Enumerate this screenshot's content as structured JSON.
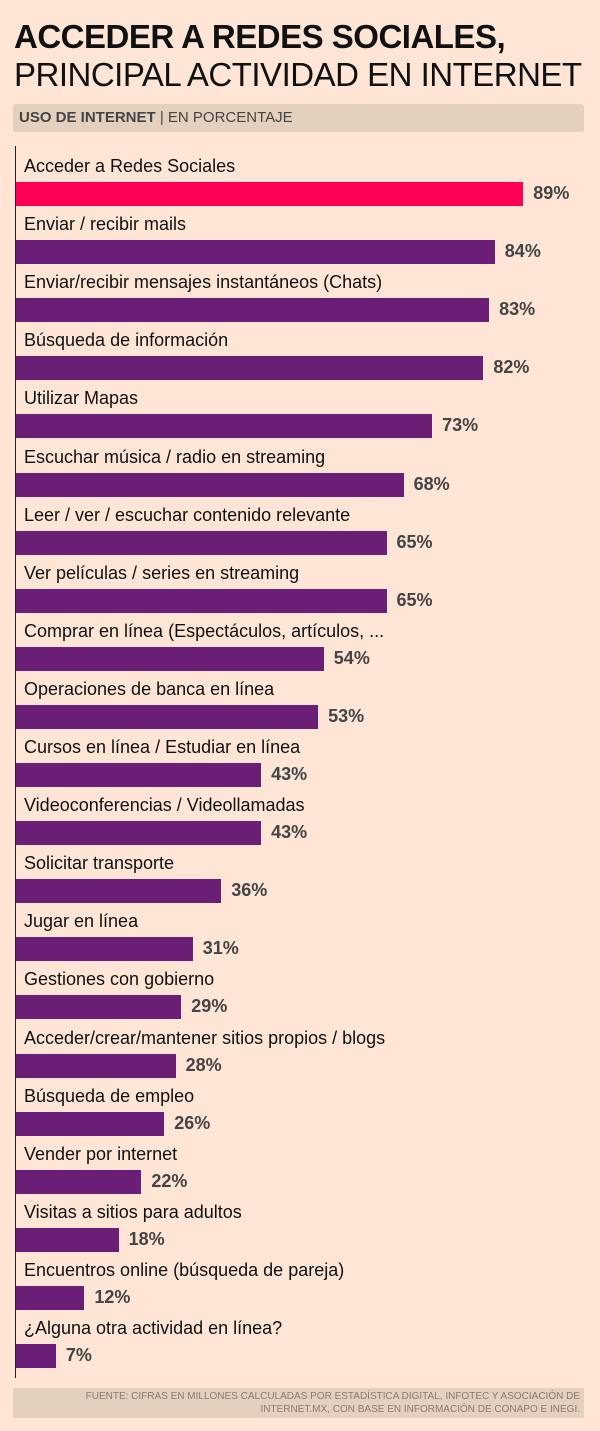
{
  "title_bold": "ACCEDER A REDES SOCIALES,",
  "title_light": "PRINCIPAL ACTIVIDAD EN INTERNET",
  "subtitle_bold": "USO DE INTERNET",
  "subtitle_rest": "| EN PORCENTAJE",
  "source_line1": "FUENTE: CIFRAS EN MILLONES CALCULADAS POR ESTADÍSTICA DIGITAL, INFOTEC Y ASOCIACIÓN DE",
  "source_line2": "INTERNET.MX, CON BASE EN INFORMACIÓN DE CONAPO E INEGI.",
  "colors": {
    "highlight": "#ff0055",
    "bar": "#6b1e76",
    "background": "#fee5d6"
  },
  "chart_data": {
    "type": "bar",
    "orientation": "horizontal",
    "unit": "%",
    "xlim": [
      0,
      100
    ],
    "grid": false,
    "categories": [
      "Acceder a Redes Sociales",
      "Enviar / recibir mails",
      "Enviar/recibir mensajes instantáneos (Chats)",
      "Búsqueda de información",
      "Utilizar Mapas",
      "Escuchar música / radio en streaming",
      "Leer / ver / escuchar contenido relevante",
      "Ver películas / series en streaming",
      "Comprar en línea (Espectáculos, artículos, ...",
      "Operaciones de banca en línea",
      "Cursos en línea / Estudiar en línea",
      "Videoconferencias / Videollamadas",
      "Solicitar transporte",
      "Jugar en línea",
      "Gestiones con gobierno",
      "Acceder/crear/mantener sitios propios / blogs",
      "Búsqueda de empleo",
      "Vender por internet",
      "Visitas a sitios para adultos",
      "Encuentros online (búsqueda de pareja)",
      "¿Alguna otra actividad en línea?"
    ],
    "values": [
      89,
      84,
      83,
      82,
      73,
      68,
      65,
      65,
      54,
      53,
      43,
      43,
      36,
      31,
      29,
      28,
      26,
      22,
      18,
      12,
      7
    ],
    "value_labels": [
      "89%",
      "84%",
      "83%",
      "82%",
      "73%",
      "68%",
      "65%",
      "65%",
      "54%",
      "53%",
      "43%",
      "43%",
      "36%",
      "31%",
      "29%",
      "28%",
      "26%",
      "22%",
      "18%",
      "12%",
      "7%"
    ],
    "highlighted_index": 0
  }
}
